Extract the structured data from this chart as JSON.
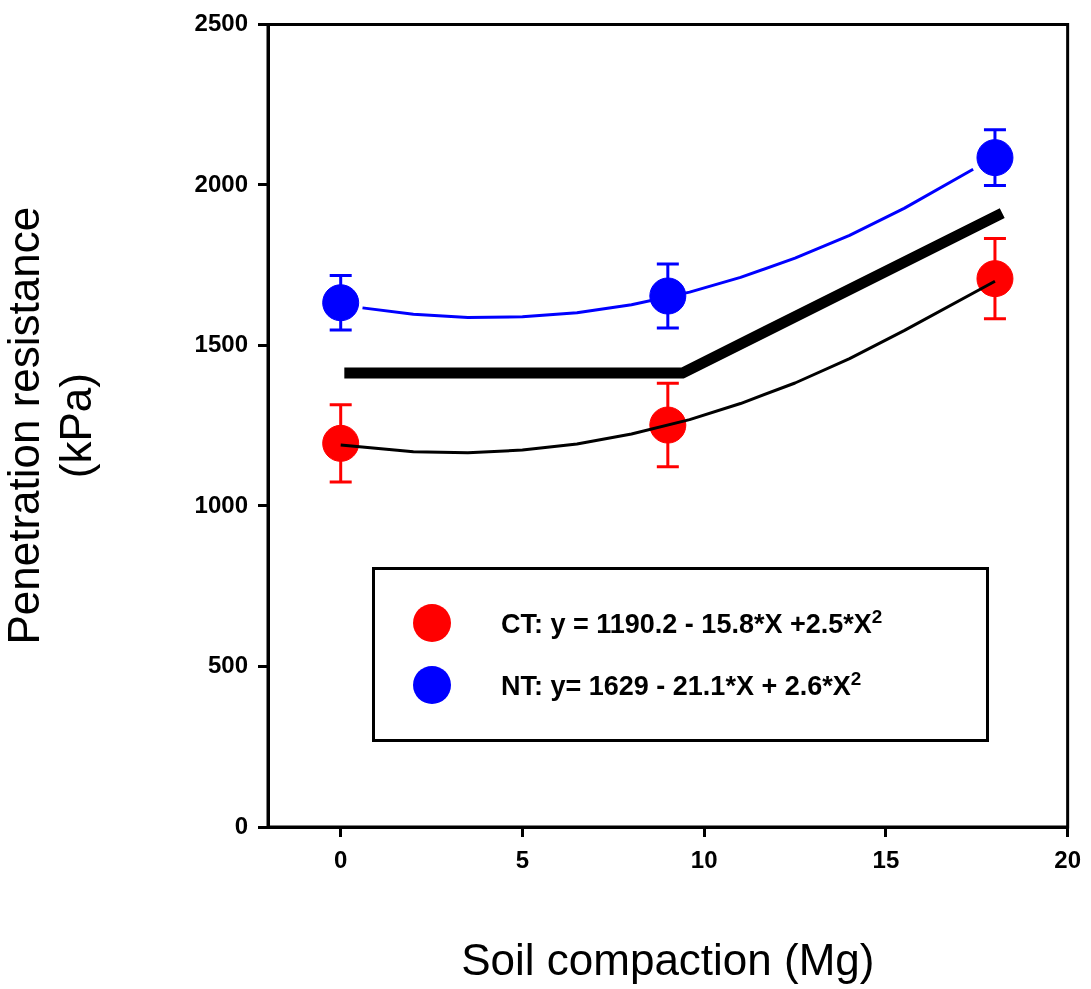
{
  "chart_data": {
    "type": "scatter",
    "xlabel": "Soil compaction (Mg)",
    "ylabel": "Penetration resistance (kPa)",
    "xlim": [
      -2,
      20
    ],
    "xticks": [
      0,
      5,
      10,
      15,
      20
    ],
    "ylim": [
      0,
      2500
    ],
    "yticks": [
      0,
      500,
      1000,
      1500,
      2000,
      2500
    ],
    "grid": false,
    "legend": "bottom",
    "series": [
      {
        "name": "CT: y = 1190.2 - 15.8*X +2.5*X$^{2}$",
        "color": "#ff0000",
        "marker": "circle",
        "x": [
          0,
          9,
          18
        ],
        "values": [
          1195,
          1252,
          1708
        ],
        "errors": [
          120,
          130,
          125
        ]
      },
      {
        "name": "NT: y= 1629 - 21.1*X + 2.6*X$^{2}$",
        "color": "#0000ff",
        "marker": "circle",
        "x": [
          0,
          9,
          18
        ],
        "values": [
          1633,
          1654,
          2085
        ],
        "errors": [
          85,
          100,
          87
        ]
      },
      {
        "type": "line",
        "color": "#000000",
        "marker": "none",
        "x": [
          0,
          2,
          3.5,
          5,
          6.5,
          8,
          9.6,
          11,
          12.5,
          14,
          15.5,
          18
        ],
        "values": [
          1190,
          1169,
          1166,
          1174,
          1193,
          1224,
          1269,
          1319,
          1383,
          1459,
          1546,
          1700
        ]
      },
      {
        "type": "line",
        "color": "#0000ff",
        "marker": "none",
        "x": [
          0.6,
          2,
          3.5,
          5,
          6.5,
          8,
          9.6,
          11,
          12.5,
          14,
          15.5,
          17.4
        ],
        "values": [
          1617,
          1597,
          1587,
          1589,
          1602,
          1627,
          1666,
          1712,
          1772,
          1843,
          1927,
          2049
        ]
      },
      {
        "type": "line",
        "color": "#000000",
        "marker": "none",
        "x": [
          0.1,
          9.4,
          18.2
        ],
        "values": [
          1414,
          1414,
          1912
        ]
      }
    ]
  }
}
